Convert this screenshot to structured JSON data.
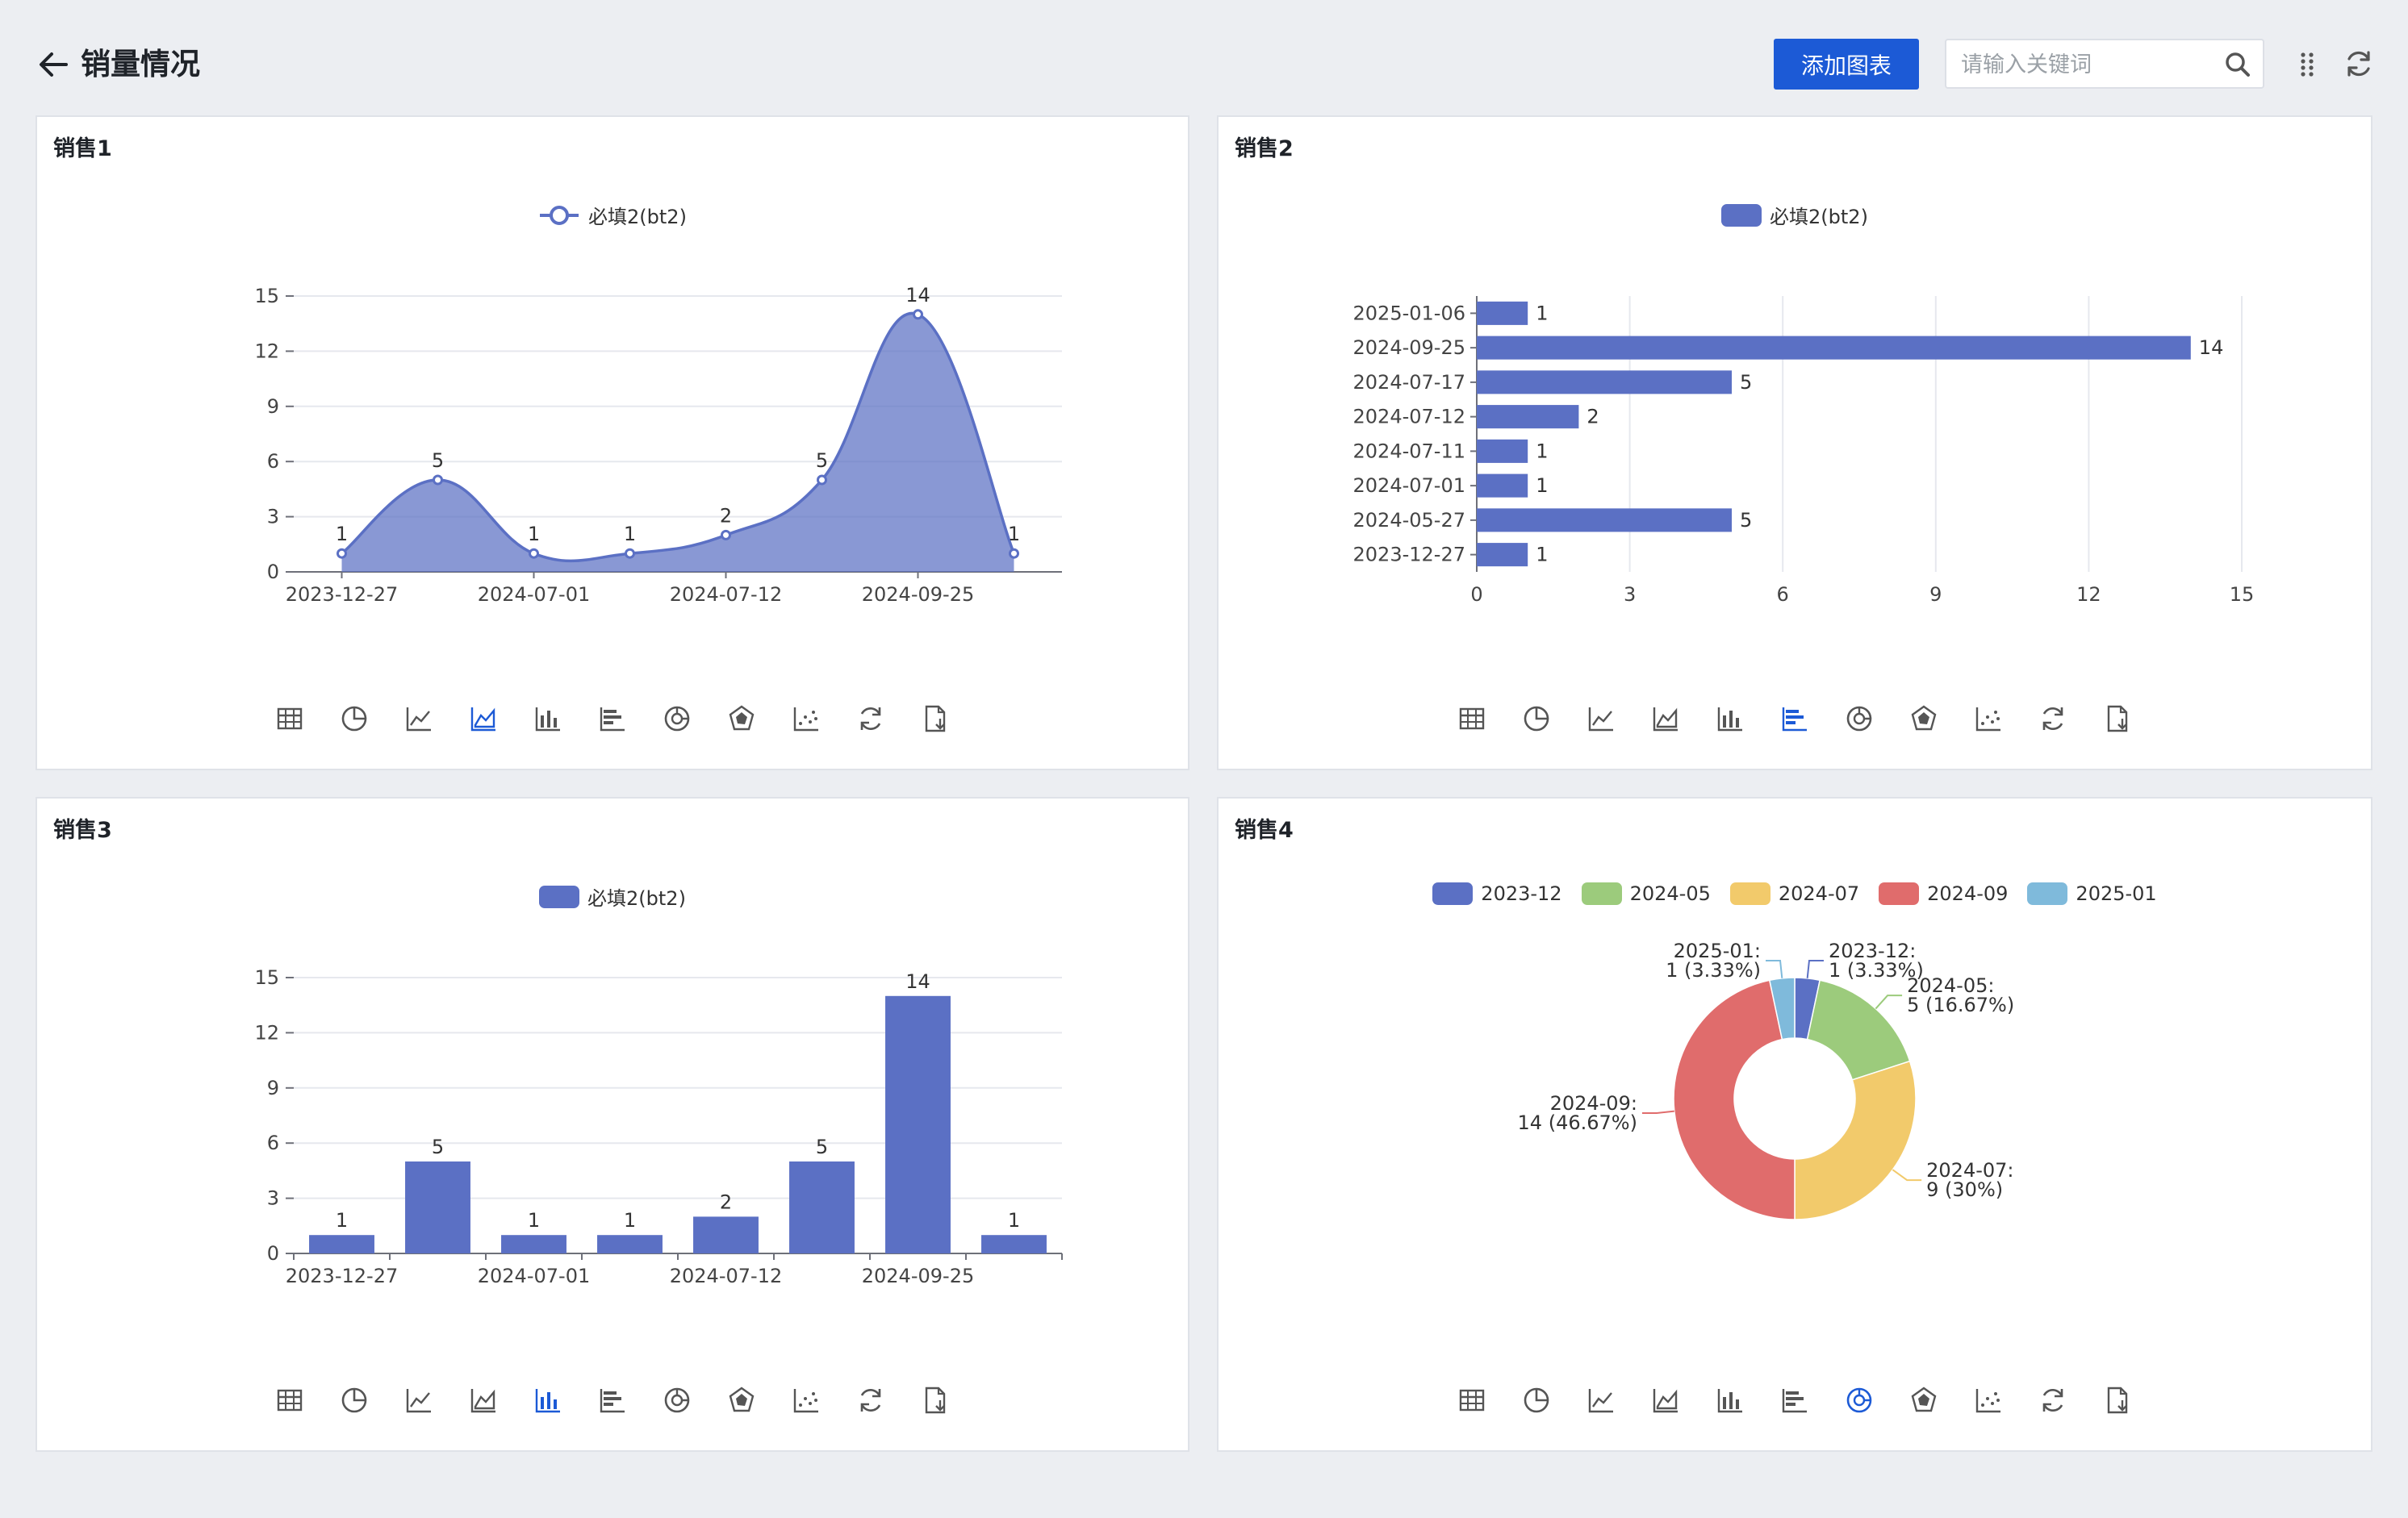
{
  "header": {
    "title": "销量情况",
    "add_chart_label": "添加图表",
    "search_placeholder": "请输入关键词"
  },
  "colors": {
    "primary": "#1c5ad6",
    "series": "#5b70c4",
    "active_tool": "#1c5ad6",
    "tool": "#555555",
    "pie": [
      "#5b70c4",
      "#9ccb7c",
      "#f2ca6b",
      "#e06c6c",
      "#7fbadb"
    ]
  },
  "tool_icons": [
    "table-icon",
    "pie-icon",
    "line-icon",
    "area-icon",
    "bar-icon",
    "horizontal-bar-icon",
    "donut-icon",
    "radar-icon",
    "scatter-icon",
    "refresh-icon",
    "export-icon"
  ],
  "cards": [
    {
      "title": "销售1",
      "legend": "必填2(bt2)",
      "active_tool": 3
    },
    {
      "title": "销售2",
      "legend": "必填2(bt2)",
      "active_tool": 5
    },
    {
      "title": "销售3",
      "legend": "必填2(bt2)",
      "active_tool": 4
    },
    {
      "title": "销售4",
      "active_tool": 6
    }
  ],
  "chart_data": [
    {
      "type": "area",
      "series": [
        {
          "name": "必填2(bt2)",
          "values": [
            1,
            5,
            1,
            1,
            2,
            5,
            14,
            1
          ]
        }
      ],
      "categories": [
        "2023-12-27",
        "2024-05-27",
        "2024-07-01",
        "2024-07-11",
        "2024-07-12",
        "2024-07-17",
        "2024-09-25",
        "2025-01-06"
      ],
      "xtick_labels": [
        "2023-12-27",
        "2024-07-01",
        "2024-07-12",
        "2024-09-25"
      ],
      "ylim": [
        0,
        15
      ],
      "yticks": [
        0,
        3,
        6,
        9,
        12,
        15
      ],
      "legend": "top-center",
      "grid": true
    },
    {
      "type": "bar",
      "orientation": "horizontal",
      "series": [
        {
          "name": "必填2(bt2)",
          "values": [
            1,
            5,
            1,
            1,
            2,
            5,
            14,
            1
          ]
        }
      ],
      "categories": [
        "2023-12-27",
        "2024-05-27",
        "2024-07-01",
        "2024-07-11",
        "2024-07-12",
        "2024-07-17",
        "2024-09-25",
        "2025-01-06"
      ],
      "xlim": [
        0,
        15
      ],
      "xticks": [
        0,
        3,
        6,
        9,
        12,
        15
      ],
      "legend": "top-center",
      "grid": true
    },
    {
      "type": "bar",
      "series": [
        {
          "name": "必填2(bt2)",
          "values": [
            1,
            5,
            1,
            1,
            2,
            5,
            14,
            1
          ]
        }
      ],
      "categories": [
        "2023-12-27",
        "2024-05-27",
        "2024-07-01",
        "2024-07-11",
        "2024-07-12",
        "2024-07-17",
        "2024-09-25",
        "2025-01-06"
      ],
      "xtick_labels": [
        "2023-12-27",
        "2024-07-01",
        "2024-07-12",
        "2024-09-25"
      ],
      "ylim": [
        0,
        15
      ],
      "yticks": [
        0,
        3,
        6,
        9,
        12,
        15
      ],
      "legend": "top-center",
      "grid": true
    },
    {
      "type": "pie",
      "donut": true,
      "labels": [
        "2023-12",
        "2024-05",
        "2024-07",
        "2024-09",
        "2025-01"
      ],
      "values": [
        1,
        5,
        9,
        14,
        1
      ],
      "slice_labels": [
        [
          "2023-12:",
          "1 (3.33%)"
        ],
        [
          "2024-05:",
          "5 (16.67%)"
        ],
        [
          "2024-07:",
          "9 (30%)"
        ],
        [
          "2024-09:",
          "14 (46.67%)"
        ],
        [
          "2025-01:",
          "1 (3.33%)"
        ]
      ],
      "legend": "top-center"
    }
  ]
}
